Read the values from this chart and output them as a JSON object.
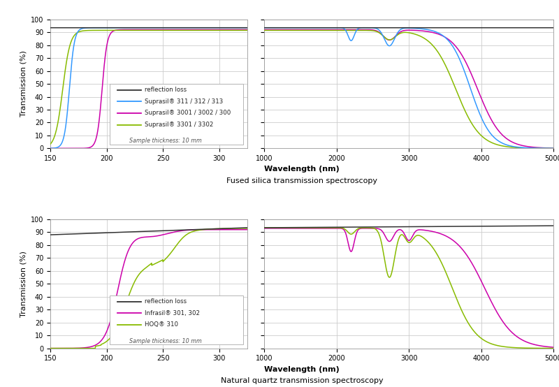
{
  "fig_width": 8.0,
  "fig_height": 5.54,
  "fig_dpi": 100,
  "background_color": "#ffffff",
  "top_title": "Fused silica transmission spectroscopy",
  "bottom_title": "Natural quartz transmission spectroscopy",
  "top_legend": {
    "entries": [
      {
        "label": "reflection loss",
        "color": "#333333"
      },
      {
        "label": "Suprasil® 311 / 312 / 313",
        "color": "#3399ff"
      },
      {
        "label": "Suprasil® 3001 / 3002 / 300",
        "color": "#cc00aa"
      },
      {
        "label": "Suprasil® 3301 / 3302",
        "color": "#88bb00"
      }
    ],
    "sample_text": "Sample thickness: 10 mm"
  },
  "bottom_legend": {
    "entries": [
      {
        "label": "reflection loss",
        "color": "#333333"
      },
      {
        "label": "Infrasil® 301, 302",
        "color": "#cc00aa"
      },
      {
        "label": "HOQ® 310",
        "color": "#88bb00"
      }
    ],
    "sample_text": "Sample thickness: 10 mm"
  },
  "ylabel": "Transmission (%)",
  "xlabel": "Wavelength (nm)",
  "yticks": [
    0,
    10,
    20,
    30,
    40,
    50,
    60,
    70,
    80,
    90,
    100
  ],
  "ylim": [
    0,
    100
  ],
  "left_xlim": [
    150,
    325
  ],
  "left_xticks": [
    150,
    200,
    250,
    300
  ],
  "right_xlim": [
    1000,
    5000
  ],
  "right_xticks": [
    1000,
    2000,
    3000,
    4000,
    5000
  ],
  "grid_color": "#cccccc",
  "grid_lw": 0.6
}
